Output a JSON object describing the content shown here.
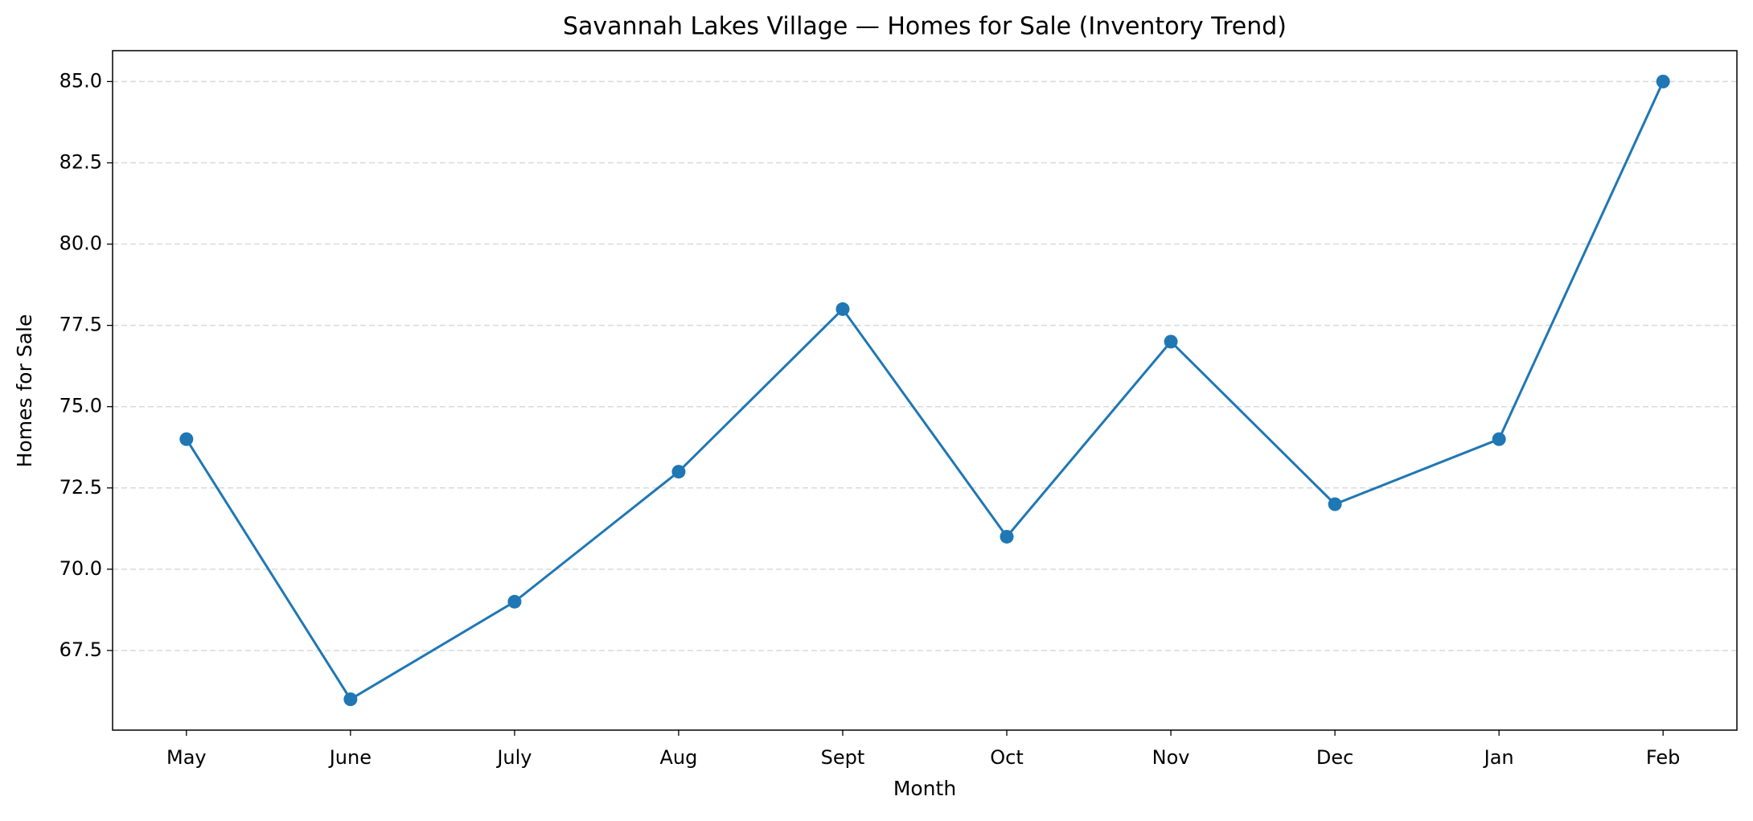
{
  "chart_data": {
    "type": "line",
    "title": "Savannah Lakes Village — Homes for Sale (Inventory Trend)",
    "xlabel": "Month",
    "ylabel": "Homes for Sale",
    "categories": [
      "May",
      "June",
      "July",
      "Aug",
      "Sept",
      "Oct",
      "Nov",
      "Dec",
      "Jan",
      "Feb"
    ],
    "values": [
      74,
      66,
      69,
      73,
      78,
      71,
      77,
      72,
      74,
      85
    ],
    "color": "#1f77b4",
    "ylim": [
      65.05,
      85.95
    ],
    "yticks": [
      67.5,
      {
        "value": 70,
        "label": "70.0"
      },
      72.5,
      {
        "value": 75,
        "label": "75.0"
      },
      77.5,
      {
        "value": 80,
        "label": "80.0"
      },
      82.5,
      {
        "value": 85,
        "label": "85.0"
      }
    ],
    "grid": true
  }
}
